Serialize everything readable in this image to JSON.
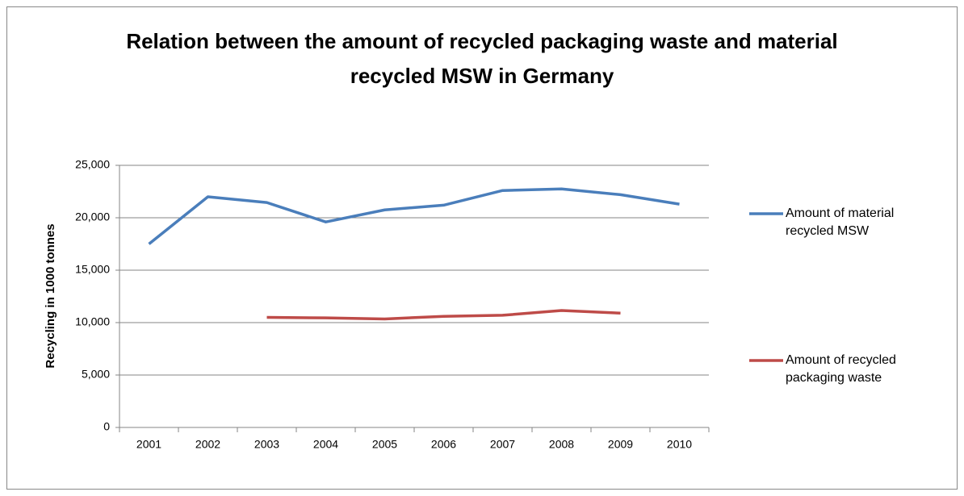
{
  "chart_data": {
    "type": "line",
    "title": "Relation between the amount of recycled packaging waste and material recycled MSW in Germany",
    "y_label": "Recycling in 1000 tonnes",
    "categories": [
      "2001",
      "2002",
      "2003",
      "2004",
      "2005",
      "2006",
      "2007",
      "2008",
      "2009",
      "2010"
    ],
    "series": [
      {
        "name": "Amount of material recycled MSW",
        "color": "#4a7ebb",
        "values": [
          17500,
          22000,
          21450,
          19600,
          20750,
          21200,
          22600,
          22750,
          22200,
          21300
        ]
      },
      {
        "name": "Amount of recycled packaging waste",
        "color": "#be4b48",
        "values": [
          null,
          null,
          10500,
          10450,
          10350,
          10600,
          10700,
          11150,
          10900,
          null
        ]
      }
    ],
    "ylim": [
      0,
      25000
    ],
    "yticks": [
      0,
      {
        "value": 5000,
        "label": "5,000"
      },
      {
        "value": 10000,
        "label": "10,000"
      },
      {
        "value": 15000,
        "label": "15,000"
      },
      {
        "value": 20000,
        "label": "20,000"
      },
      {
        "value": 25000,
        "label": "25,000"
      }
    ],
    "grid": true,
    "legend": "right"
  }
}
